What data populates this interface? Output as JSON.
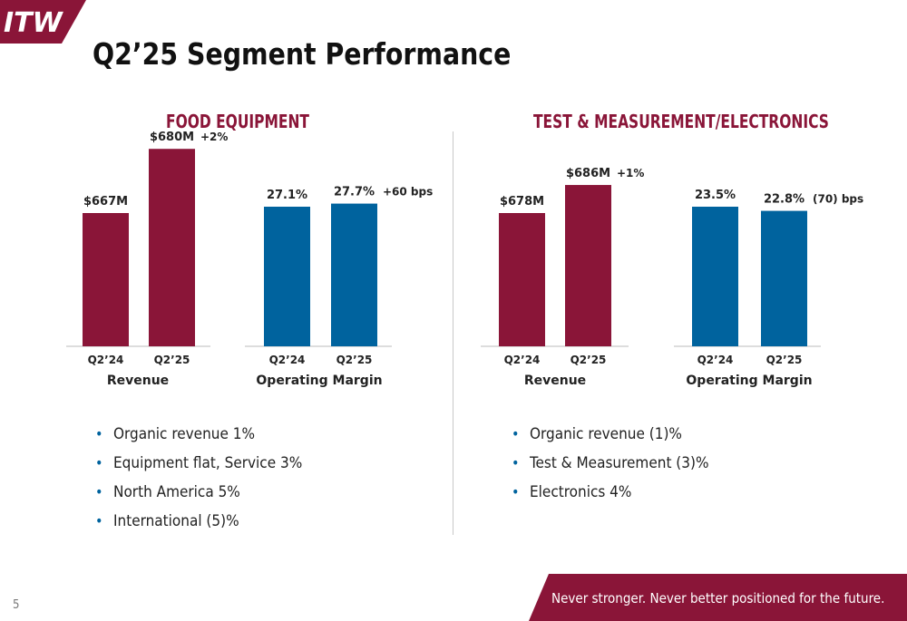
{
  "logo": {
    "text": "ITW"
  },
  "page_title": "Q2’25 Segment Performance",
  "sections": [
    {
      "title": "FOOD EQUIPMENT",
      "bullets": [
        "Organic revenue 1%",
        "Equipment flat, Service 3%",
        "North America 5%",
        "International (5)%"
      ]
    },
    {
      "title": "TEST & MEASUREMENT/ELECTRONICS",
      "bullets": [
        "Organic revenue (1)%",
        "Test & Measurement (3)%",
        "Electronics 4%"
      ]
    }
  ],
  "colors": {
    "revenue": "#8a1538",
    "margin": "#00639e",
    "brand": "#8a1538"
  },
  "chart_data": [
    {
      "type": "bar",
      "segment": "FOOD EQUIPMENT",
      "xlabel": "Revenue",
      "unit": "$M",
      "categories": [
        "Q2’24",
        "Q2’25"
      ],
      "values": [
        667,
        680
      ],
      "data_labels": [
        "$667M",
        "$680M"
      ],
      "change": "+2%"
    },
    {
      "type": "bar",
      "segment": "FOOD EQUIPMENT",
      "xlabel": "Operating Margin",
      "unit": "%",
      "categories": [
        "Q2’24",
        "Q2’25"
      ],
      "values": [
        27.1,
        27.7
      ],
      "data_labels": [
        "27.1%",
        "27.7%"
      ],
      "change": "+60 bps"
    },
    {
      "type": "bar",
      "segment": "TEST & MEASUREMENT/ELECTRONICS",
      "xlabel": "Revenue",
      "unit": "$M",
      "categories": [
        "Q2’24",
        "Q2’25"
      ],
      "values": [
        678,
        686
      ],
      "data_labels": [
        "$678M",
        "$686M"
      ],
      "change": "+1%"
    },
    {
      "type": "bar",
      "segment": "TEST & MEASUREMENT/ELECTRONICS",
      "xlabel": "Operating Margin",
      "unit": "%",
      "categories": [
        "Q2’24",
        "Q2’25"
      ],
      "values": [
        23.5,
        22.8
      ],
      "data_labels": [
        "23.5%",
        "22.8%"
      ],
      "change": "(70) bps"
    }
  ],
  "footer": {
    "tagline": "Never stronger. Never better positioned for the future."
  },
  "page_number": "5"
}
